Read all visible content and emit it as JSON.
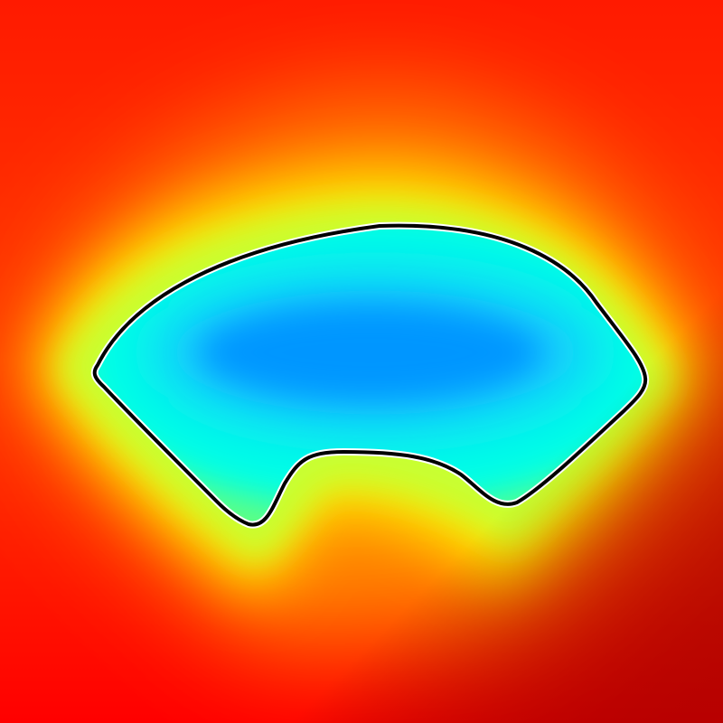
{
  "image": {
    "description_colors": {
      "outer": "#ff0000",
      "mid_orange": "#ff8c00",
      "band_yellow": "#ffff00",
      "inner_green": "#8cff6a",
      "inner_cyan": "#00ffe6",
      "core_blue": "#0096ff",
      "contour": "#000000",
      "contour_halo": "#ffffff"
    },
    "icons": [
      "fan-shaped-contour-shape",
      "distance-field-gradient"
    ]
  }
}
